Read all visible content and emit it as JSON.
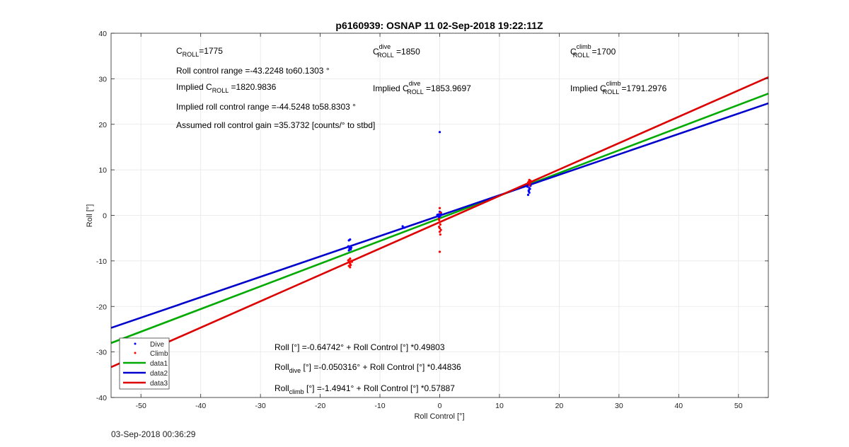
{
  "footer": {
    "timestamp": "03-Sep-2018 00:36:29"
  },
  "chart_data": {
    "type": "scatter",
    "title": "p6160939: OSNAP 11 02-Sep-2018 19:22:11Z",
    "xlabel": "Roll Control [°]",
    "ylabel": "Roll [°]",
    "xlim": [
      -55,
      55
    ],
    "ylim": [
      -40,
      40
    ],
    "xticks": [
      -50,
      -40,
      -30,
      -20,
      -10,
      0,
      10,
      20,
      30,
      40,
      50
    ],
    "yticks": [
      -40,
      -30,
      -20,
      -10,
      0,
      10,
      20,
      30,
      40
    ],
    "grid": true,
    "legend_position": "bottom-left",
    "annotations": {
      "c_roll": {
        "prefix": "C",
        "sub": "ROLL",
        "sup": "",
        "value": "=1775"
      },
      "c_roll_dive": {
        "prefix": "C",
        "sub": "ROLL",
        "sup": "dive",
        "value": " =1850"
      },
      "c_roll_climb": {
        "prefix": "C",
        "sub": "ROLL",
        "sup": "climb",
        "value": " =1700"
      },
      "range": "Roll control range =-43.2248 to60.1303 °",
      "implied": {
        "prefix": "Implied C",
        "sub": "ROLL",
        "sup": "",
        "value": " =1820.9836"
      },
      "implied_dive": {
        "prefix": "Implied C",
        "sub": "ROLL",
        "sup": "dive",
        "value": " =1853.9697"
      },
      "implied_climb": {
        "prefix": "Implied C",
        "sub": "ROLL",
        "sup": "climb",
        "value": " =1791.2976"
      },
      "implied_range": "Implied roll control range =-44.5248 to58.8303 °",
      "gain": "Assumed roll control gain =35.3732 [counts/° to stbd]",
      "fit_all": "Roll [°] =-0.64742° + Roll Control [°] *0.49803",
      "fit_dive": {
        "prefix": "Roll",
        "sub": "dive",
        "rest": " [°] =-0.050316° + Roll Control [°] *0.44836"
      },
      "fit_climb": {
        "prefix": "Roll",
        "sub": "climb",
        "rest": " [°] =-1.4941° + Roll Control [°] *0.57887"
      }
    },
    "series": [
      {
        "name": "Dive",
        "kind": "scatter",
        "color": "#0000ff",
        "points": [
          [
            -15,
            -5.3
          ],
          [
            -15.2,
            -5.5
          ],
          [
            -15.3,
            -6.8
          ],
          [
            -15,
            -7.0
          ],
          [
            -15.1,
            -7.3
          ],
          [
            -14.9,
            -7.5
          ],
          [
            -15.2,
            -7.7
          ],
          [
            -15,
            -6.9
          ],
          [
            -14.8,
            -7.1
          ],
          [
            -0.2,
            0.2
          ],
          [
            0.1,
            0.4
          ],
          [
            0,
            0.0
          ],
          [
            -0.3,
            -0.2
          ],
          [
            0.2,
            0.6
          ],
          [
            0,
            0.8
          ],
          [
            -0.1,
            -0.4
          ],
          [
            0.1,
            -0.1
          ],
          [
            0,
            18.3
          ],
          [
            -0.4,
            0.1
          ],
          [
            0.3,
            0.2
          ],
          [
            14.8,
            4.5
          ],
          [
            15,
            5.0
          ],
          [
            14.9,
            5.3
          ],
          [
            15.1,
            5.8
          ],
          [
            15,
            6.0
          ],
          [
            14.7,
            6.3
          ],
          [
            15.2,
            6.5
          ],
          [
            15,
            6.8
          ],
          [
            14.9,
            5.5
          ],
          [
            -6.2,
            -2.4
          ],
          [
            -5.9,
            -2.7
          ]
        ]
      },
      {
        "name": "Climb",
        "kind": "scatter",
        "color": "#ff0000",
        "points": [
          [
            -15,
            -9.5
          ],
          [
            -15.2,
            -9.8
          ],
          [
            -14.8,
            -10.0
          ],
          [
            -15.1,
            -10.3
          ],
          [
            -15,
            -10.6
          ],
          [
            -14.9,
            -10.9
          ],
          [
            -15.2,
            -11.1
          ],
          [
            -15,
            -11.4
          ],
          [
            -14.7,
            -10.2
          ],
          [
            -15.3,
            -9.9
          ],
          [
            0,
            1.6
          ],
          [
            0.1,
            0.6
          ],
          [
            -0.1,
            -0.8
          ],
          [
            0,
            -1.5
          ],
          [
            0.1,
            -2.0
          ],
          [
            -0.1,
            -2.5
          ],
          [
            0,
            -2.8
          ],
          [
            0.2,
            -3.2
          ],
          [
            0,
            -3.6
          ],
          [
            0.1,
            -4.2
          ],
          [
            -0.1,
            -1.0
          ],
          [
            0,
            -8.0
          ],
          [
            15,
            7.8
          ],
          [
            14.9,
            7.4
          ],
          [
            15.1,
            7.0
          ],
          [
            15,
            6.6
          ],
          [
            14.8,
            7.2
          ],
          [
            15.2,
            7.6
          ]
        ]
      },
      {
        "name": "data1",
        "kind": "line",
        "color": "#00aa00",
        "intercept": -0.64742,
        "slope": 0.49803
      },
      {
        "name": "data2",
        "kind": "line",
        "color": "#0000cc",
        "intercept": -0.050316,
        "slope": 0.44836
      },
      {
        "name": "data3",
        "kind": "line",
        "color": "#dd0000",
        "intercept": -1.4941,
        "slope": 0.57887
      }
    ]
  }
}
